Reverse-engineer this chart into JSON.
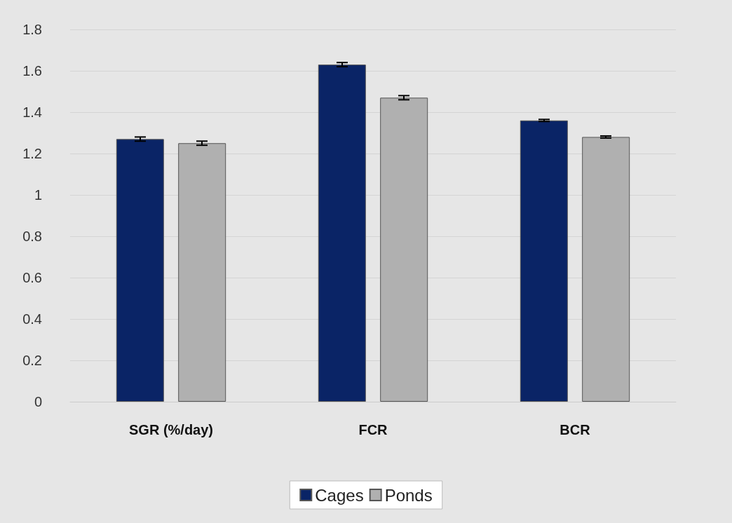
{
  "chart_data": {
    "type": "bar",
    "categories": [
      "SGR (%/day)",
      "FCR",
      "BCR"
    ],
    "series": [
      {
        "name": "Cages",
        "color": "#0a2466",
        "values": [
          1.27,
          1.63,
          1.36
        ],
        "errors": [
          0.01,
          0.01,
          0.005
        ]
      },
      {
        "name": "Ponds",
        "color": "#b0b0b0",
        "values": [
          1.25,
          1.47,
          1.28
        ],
        "errors": [
          0.01,
          0.01,
          0.005
        ]
      }
    ],
    "ylim": [
      0,
      1.8
    ],
    "yticks": [
      0,
      0.2,
      0.4,
      0.6,
      0.8,
      1,
      1.2,
      1.4,
      1.6,
      1.8
    ],
    "grid": "y",
    "legend": "bottom"
  }
}
